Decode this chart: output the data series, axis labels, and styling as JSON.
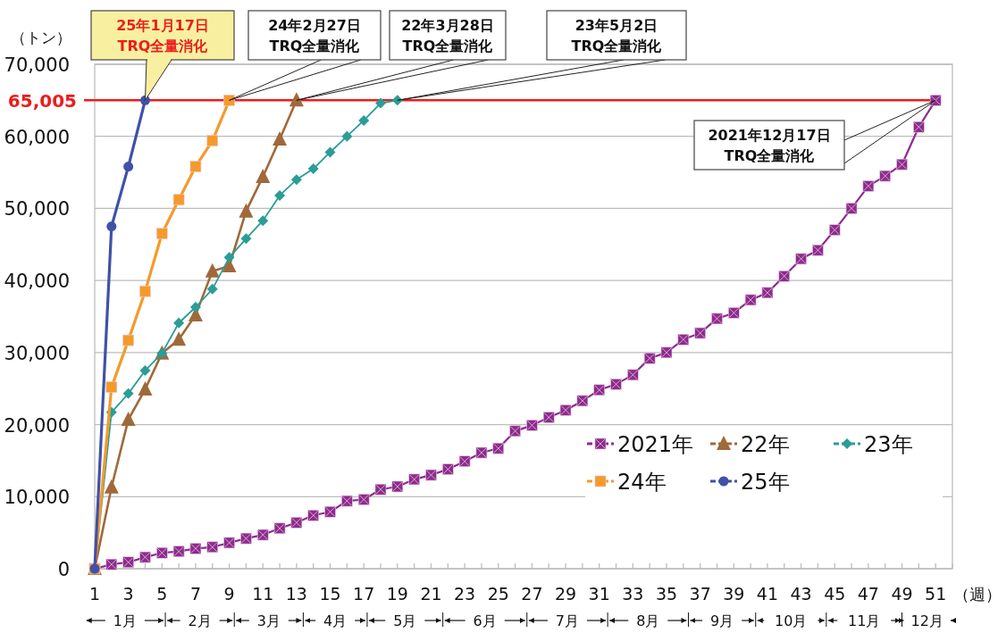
{
  "chart_data": {
    "type": "line",
    "ylabel": "（トン）",
    "xlabel": "（週）",
    "xlim": [
      1,
      52
    ],
    "xticks": [
      1,
      {
        "value": 2,
        "label": null
      },
      3,
      {
        "value": 4,
        "label": null
      },
      5,
      {
        "value": 6,
        "label": null
      },
      7,
      {
        "value": 8,
        "label": null
      },
      9,
      {
        "value": 10,
        "label": null
      },
      11,
      {
        "value": 12,
        "label": null
      },
      13,
      {
        "value": 14,
        "label": null
      },
      15,
      {
        "value": 16,
        "label": null
      },
      17,
      {
        "value": 18,
        "label": null
      },
      19,
      {
        "value": 20,
        "label": null
      },
      21,
      {
        "value": 22,
        "label": null
      },
      23,
      {
        "value": 24,
        "label": null
      },
      25,
      {
        "value": 26,
        "label": null
      },
      27,
      {
        "value": 28,
        "label": null
      },
      29,
      {
        "value": 30,
        "label": null
      },
      31,
      {
        "value": 32,
        "label": null
      },
      33,
      {
        "value": 34,
        "label": null
      },
      35,
      {
        "value": 36,
        "label": null
      },
      37,
      {
        "value": 38,
        "label": null
      },
      39,
      {
        "value": 40,
        "label": null
      },
      41,
      {
        "value": 42,
        "label": null
      },
      43,
      {
        "value": 44,
        "label": null
      },
      45,
      {
        "value": 46,
        "label": null
      },
      47,
      {
        "value": 48,
        "label": null
      },
      49,
      {
        "value": 50,
        "label": null
      },
      51,
      {
        "value": 52,
        "label": null
      }
    ],
    "ylim": [
      0,
      70000
    ],
    "yticks": [
      0,
      {
        "value": 10000,
        "label": "10,000"
      },
      {
        "value": 20000,
        "label": "20,000"
      },
      {
        "value": 30000,
        "label": "30,000"
      },
      {
        "value": 40000,
        "label": "40,000"
      },
      {
        "value": 50000,
        "label": "50,000"
      },
      {
        "value": 60000,
        "label": "60,000"
      },
      {
        "value": 70000,
        "label": "70,000"
      }
    ],
    "grid": "y",
    "legend": "bottom right",
    "line_style": "solid",
    "series": [
      {
        "name": "2021年",
        "color": "#8e2a92",
        "marker": "square",
        "x": [
          1,
          2,
          3,
          4,
          5,
          6,
          7,
          8,
          9,
          10,
          11,
          12,
          13,
          14,
          15,
          16,
          17,
          18,
          19,
          20,
          21,
          22,
          23,
          24,
          25,
          26,
          27,
          28,
          29,
          30,
          31,
          32,
          33,
          34,
          35,
          36,
          37,
          38,
          39,
          40,
          41,
          42,
          43,
          44,
          45,
          46,
          47,
          48,
          49,
          50,
          51
        ],
        "values": [
          0,
          600,
          900,
          1600,
          2200,
          2400,
          2800,
          3000,
          3600,
          4200,
          4700,
          5600,
          6400,
          7400,
          7900,
          9400,
          9600,
          11000,
          11400,
          12400,
          13000,
          13800,
          14900,
          16100,
          16700,
          19100,
          19900,
          21000,
          22000,
          23300,
          24800,
          25600,
          26900,
          29200,
          30000,
          31800,
          32700,
          34700,
          35500,
          37300,
          38300,
          40600,
          43000,
          44200,
          47000,
          50000,
          53100,
          54500,
          56100,
          61300,
          65000
        ]
      },
      {
        "name": "22年",
        "color": "#a0693a",
        "marker": "triangle",
        "x": [
          1,
          2,
          3,
          4,
          5,
          6,
          7,
          8,
          9,
          10,
          11,
          12,
          13
        ],
        "values": [
          0,
          11300,
          20700,
          24900,
          29900,
          31800,
          35200,
          41300,
          42000,
          49600,
          54400,
          59600,
          65000
        ]
      },
      {
        "name": "23年",
        "color": "#2a9d98",
        "marker": "diamond",
        "x": [
          1,
          2,
          3,
          4,
          5,
          6,
          7,
          8,
          9,
          10,
          11,
          12,
          13,
          14,
          15,
          16,
          17,
          18,
          19
        ],
        "values": [
          0,
          21700,
          24300,
          27500,
          29900,
          34100,
          36300,
          38800,
          43200,
          45800,
          48300,
          51800,
          54000,
          55500,
          57800,
          60000,
          62200,
          64600,
          65000
        ]
      },
      {
        "name": "24年",
        "color": "#f59a2a",
        "marker": "square",
        "x": [
          1,
          2,
          3,
          4,
          5,
          6,
          7,
          8,
          9
        ],
        "values": [
          0,
          25200,
          31700,
          38500,
          46500,
          51200,
          55800,
          59400,
          65000
        ]
      },
      {
        "name": "25年",
        "color": "#3f51a8",
        "marker": "circle",
        "x": [
          1,
          2,
          3,
          4
        ],
        "values": [
          0,
          47500,
          55800,
          65000
        ]
      }
    ],
    "ref_lines": [
      {
        "axis": "y",
        "value": 65005,
        "label": "65,005",
        "color": "#ee1c1c"
      }
    ],
    "annotations": [
      {
        "text": "25年1月17日\nTRQ全量消化",
        "x": 4,
        "y": 65005
      },
      {
        "text": "24年2月27日\nTRQ全量消化",
        "x": 9,
        "y": 65005
      },
      {
        "text": "22年3月28日\nTRQ全量消化",
        "x": 13,
        "y": 65005
      },
      {
        "text": "23年5月2日\nTRQ全量消化",
        "x": 19,
        "y": 65005
      },
      {
        "text": "2021年12月17日\nTRQ全量消化",
        "x": 51,
        "y": 65005
      },
      "1月",
      "2月",
      "3月",
      "4月",
      "5月",
      "6月",
      "7月",
      "8月",
      "9月",
      "10月",
      "11月",
      "12月"
    ]
  }
}
